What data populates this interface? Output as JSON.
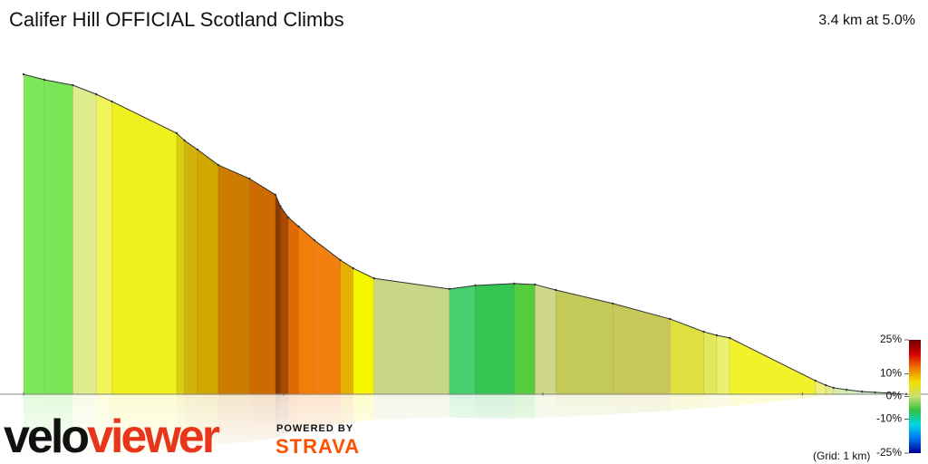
{
  "chart_data": {
    "type": "profile",
    "title": "Califer Hill OFFICIAL Scotland Climbs",
    "summary": "3.4 km at 5.0%",
    "grid_note": "(Grid: 1 km)",
    "brand": {
      "part1": "velo",
      "part2": "viewer",
      "powered": "POWERED BY",
      "partner": "STRAVA"
    },
    "x": [
      0,
      0.08,
      0.19,
      0.28,
      0.34,
      0.59,
      0.62,
      0.67,
      0.75,
      0.87,
      0.97,
      0.99,
      1.02,
      1.06,
      1.12,
      1.22,
      1.27,
      1.35,
      1.64,
      1.74,
      1.89,
      1.97,
      2.05,
      2.27,
      2.49,
      2.62,
      2.67,
      2.72,
      3.05,
      3.09,
      3.12,
      3.17,
      3.23,
      3.28,
      3.4
    ],
    "values": [
      170.0,
      167.1,
      164.2,
      159.4,
      155.6,
      138.7,
      134.8,
      130.0,
      121.8,
      114.6,
      106.0,
      99.7,
      93.9,
      89.1,
      81.9,
      71.3,
      66.9,
      61.6,
      55.9,
      57.8,
      58.8,
      58.3,
      55.4,
      48.2,
      40.0,
      33.2,
      31.3,
      29.9,
      7.2,
      4.8,
      3.4,
      2.4,
      1.4,
      1.0,
      0
    ],
    "segment_colors": [
      "#7de85a",
      "#79e656",
      "#dfec8e",
      "#f0f55a",
      "#f0f01e",
      "#d8cf10",
      "#d4b20c",
      "#d0a800",
      "#cc7c00",
      "#cd6a00",
      "#8a3c00",
      "#a94a00",
      "#e06a00",
      "#f07e0a",
      "#f28010",
      "#e8b000",
      "#f5f500",
      "#c8d68a",
      "#48d070",
      "#34c452",
      "#55cc3c",
      "#cfd88a",
      "#c4ca5a",
      "#c8c85a",
      "#dfe040",
      "#e2e85a",
      "#eaf070",
      "#f2f22a",
      "#eef07a",
      "#e4ee8a",
      "#d6ecb0",
      "#cdeec0",
      "#c4ecc0",
      "#b8eac0"
    ],
    "xlim": [
      0,
      3.4
    ],
    "ylim": [
      0,
      170
    ],
    "xticks": [
      0,
      1,
      2,
      3
    ],
    "gradient_colors": [
      "#6e0000",
      "#d40000",
      "#f07800",
      "#f0e000",
      "#c8e070",
      "#30c040",
      "#00d8e8",
      "#0070f0",
      "#000090"
    ],
    "gradient_lim": [
      -25,
      25
    ],
    "gradient_ticks": [
      {
        "value": 25,
        "label": "25%"
      },
      {
        "value": 10,
        "label": "10%"
      },
      {
        "value": 0,
        "label": "0%"
      },
      {
        "value": -10,
        "label": "-10%"
      },
      {
        "value": -25,
        "label": "-25%"
      }
    ]
  }
}
